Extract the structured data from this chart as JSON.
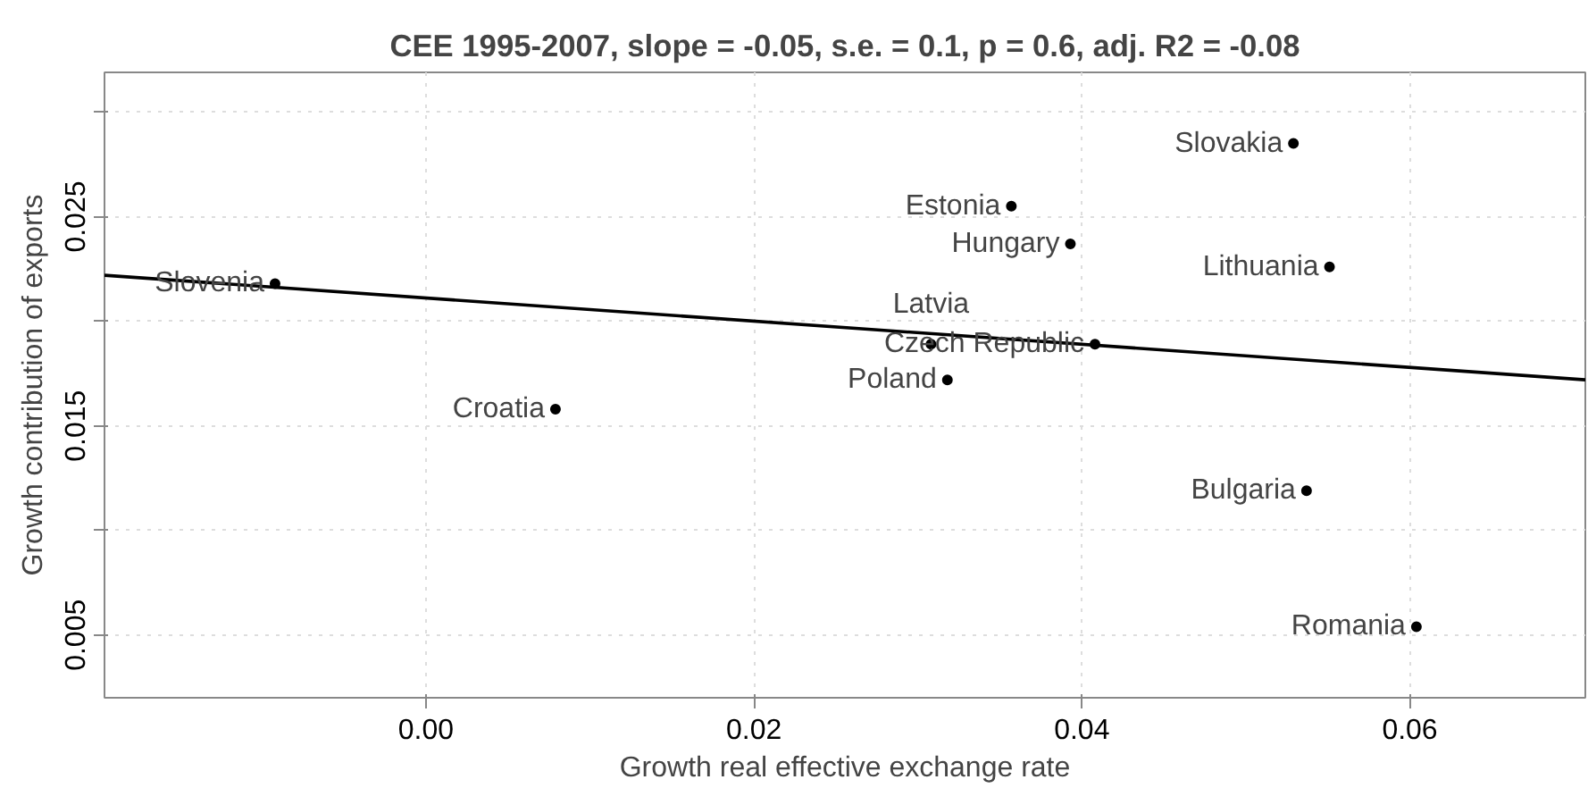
{
  "chart_data": {
    "type": "scatter",
    "title": "CEE 1995-2007, slope = -0.05, s.e. = 0.1, p = 0.6, adj. R2 = -0.08",
    "xlabel": "Growth real effective exchange rate",
    "ylabel": "Growth contribution of exports",
    "series": [
      {
        "color": "#000000",
        "marker": "circle",
        "x": [
          -0.0092,
          0.0079,
          0.0529,
          0.0357,
          0.0393,
          0.0551,
          0.0408,
          0.0308,
          0.0318,
          0.0537,
          0.0604
        ],
        "values": [
          0.0218,
          0.0158,
          0.0285,
          0.0255,
          0.0237,
          0.0226,
          0.0189,
          0.0189,
          0.0172,
          0.0119,
          0.0054
        ]
      },
      {
        "type": "line",
        "color": "#000000",
        "x": [
          -0.0196,
          0.0707
        ],
        "values": [
          0.0222,
          0.0172
        ]
      }
    ],
    "annotations": [
      {
        "text": "Slovenia",
        "x": -0.0092,
        "y": 0.0218
      },
      {
        "text": "Croatia",
        "x": 0.0079,
        "y": 0.0158
      },
      {
        "text": "Slovakia",
        "x": 0.0529,
        "y": 0.0285
      },
      {
        "text": "Estonia",
        "x": 0.0357,
        "y": 0.0255
      },
      {
        "text": "Hungary",
        "x": 0.0393,
        "y": 0.0237
      },
      {
        "text": "Lithuania",
        "x": 0.0551,
        "y": 0.0226
      },
      {
        "text": "Czech Republic",
        "x": 0.0408,
        "y": 0.0189
      },
      {
        "text": "Latvia",
        "x": 0.0308,
        "y": 0.0189
      },
      {
        "text": "Poland",
        "x": 0.0318,
        "y": 0.0172
      },
      {
        "text": "Bulgaria",
        "x": 0.0537,
        "y": 0.0119
      },
      {
        "text": "Romania",
        "x": 0.0604,
        "y": 0.0054
      }
    ],
    "xlim": [
      -0.0196,
      0.0707
    ],
    "ylim": [
      0.002,
      0.0319
    ],
    "xticks": [
      "0.00",
      0.02,
      0.04,
      0.06
    ],
    "yticks": [
      0.005,
      {
        "value": 0.01,
        "label": null
      },
      0.015,
      {
        "value": 0.02,
        "label": null
      },
      0.025,
      {
        "value": 0.03,
        "label": null
      }
    ],
    "grid": true,
    "line_style": "solid"
  }
}
